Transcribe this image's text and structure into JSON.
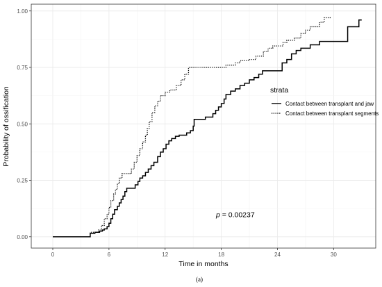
{
  "chart_data": {
    "type": "line",
    "subtype": "kaplan-meier-step",
    "xlabel": "Time in months",
    "ylabel": "Probability of ossification",
    "xlim": [
      -2.3,
      34.5
    ],
    "ylim": [
      -0.05,
      1.03
    ],
    "xticks": [
      0,
      6,
      12,
      18,
      24,
      30
    ],
    "yticks": [
      0.0,
      0.25,
      0.5,
      0.75,
      1.0
    ],
    "ytick_labels": [
      "0.00",
      "0.25",
      "0.50",
      "0.75",
      "1.00"
    ],
    "grid": true,
    "legend": {
      "title": "strata",
      "placement": "right"
    },
    "annotation": {
      "p_symbol": "p",
      "p_value": " = 0.00237",
      "x": 19.5,
      "y": 0.1
    },
    "caption": "(a)",
    "series": [
      {
        "name": "Contact between transplant and jaw",
        "style": "solid",
        "points": [
          [
            0,
            0
          ],
          [
            4,
            0
          ],
          [
            4,
            0.015
          ],
          [
            4.5,
            0.015
          ],
          [
            4.5,
            0.02
          ],
          [
            5,
            0.02
          ],
          [
            5,
            0.025
          ],
          [
            5.3,
            0.025
          ],
          [
            5.3,
            0.03
          ],
          [
            5.5,
            0.03
          ],
          [
            5.5,
            0.035
          ],
          [
            5.8,
            0.035
          ],
          [
            5.8,
            0.045
          ],
          [
            6.0,
            0.045
          ],
          [
            6.0,
            0.06
          ],
          [
            6.2,
            0.06
          ],
          [
            6.2,
            0.08
          ],
          [
            6.4,
            0.08
          ],
          [
            6.4,
            0.1
          ],
          [
            6.6,
            0.1
          ],
          [
            6.6,
            0.12
          ],
          [
            6.9,
            0.12
          ],
          [
            6.9,
            0.135
          ],
          [
            7.1,
            0.135
          ],
          [
            7.1,
            0.15
          ],
          [
            7.3,
            0.15
          ],
          [
            7.3,
            0.165
          ],
          [
            7.5,
            0.165
          ],
          [
            7.5,
            0.18
          ],
          [
            7.7,
            0.18
          ],
          [
            7.7,
            0.2
          ],
          [
            7.9,
            0.2
          ],
          [
            7.9,
            0.215
          ],
          [
            8.8,
            0.215
          ],
          [
            8.8,
            0.23
          ],
          [
            9.1,
            0.23
          ],
          [
            9.1,
            0.245
          ],
          [
            9.3,
            0.245
          ],
          [
            9.3,
            0.26
          ],
          [
            9.6,
            0.26
          ],
          [
            9.6,
            0.27
          ],
          [
            9.9,
            0.27
          ],
          [
            9.9,
            0.285
          ],
          [
            10.2,
            0.285
          ],
          [
            10.2,
            0.3
          ],
          [
            10.5,
            0.3
          ],
          [
            10.5,
            0.315
          ],
          [
            10.8,
            0.315
          ],
          [
            10.8,
            0.33
          ],
          [
            11.2,
            0.33
          ],
          [
            11.2,
            0.355
          ],
          [
            11.5,
            0.355
          ],
          [
            11.5,
            0.375
          ],
          [
            11.8,
            0.375
          ],
          [
            11.8,
            0.39
          ],
          [
            12.1,
            0.39
          ],
          [
            12.1,
            0.41
          ],
          [
            12.4,
            0.41
          ],
          [
            12.4,
            0.425
          ],
          [
            12.7,
            0.425
          ],
          [
            12.7,
            0.435
          ],
          [
            13.1,
            0.435
          ],
          [
            13.1,
            0.445
          ],
          [
            13.5,
            0.445
          ],
          [
            13.5,
            0.45
          ],
          [
            14.3,
            0.45
          ],
          [
            14.3,
            0.46
          ],
          [
            14.7,
            0.46
          ],
          [
            14.7,
            0.47
          ],
          [
            15.0,
            0.47
          ],
          [
            15.0,
            0.49
          ],
          [
            15.1,
            0.49
          ],
          [
            15.1,
            0.52
          ],
          [
            16.3,
            0.52
          ],
          [
            16.3,
            0.53
          ],
          [
            17.1,
            0.53
          ],
          [
            17.1,
            0.545
          ],
          [
            17.4,
            0.545
          ],
          [
            17.4,
            0.56
          ],
          [
            17.7,
            0.56
          ],
          [
            17.7,
            0.575
          ],
          [
            18.0,
            0.575
          ],
          [
            18.0,
            0.59
          ],
          [
            18.3,
            0.59
          ],
          [
            18.3,
            0.61
          ],
          [
            18.5,
            0.61
          ],
          [
            18.5,
            0.63
          ],
          [
            19.0,
            0.63
          ],
          [
            19.0,
            0.645
          ],
          [
            19.5,
            0.645
          ],
          [
            19.5,
            0.655
          ],
          [
            20.0,
            0.655
          ],
          [
            20.0,
            0.67
          ],
          [
            20.5,
            0.67
          ],
          [
            20.5,
            0.68
          ],
          [
            21.0,
            0.68
          ],
          [
            21.0,
            0.695
          ],
          [
            21.5,
            0.695
          ],
          [
            21.5,
            0.705
          ],
          [
            22.0,
            0.705
          ],
          [
            22.0,
            0.72
          ],
          [
            22.4,
            0.72
          ],
          [
            22.4,
            0.735
          ],
          [
            24.5,
            0.735
          ],
          [
            24.5,
            0.77
          ],
          [
            25.0,
            0.77
          ],
          [
            25.0,
            0.785
          ],
          [
            25.5,
            0.785
          ],
          [
            25.5,
            0.81
          ],
          [
            26.0,
            0.81
          ],
          [
            26.0,
            0.825
          ],
          [
            26.5,
            0.825
          ],
          [
            26.5,
            0.835
          ],
          [
            27.5,
            0.835
          ],
          [
            27.5,
            0.85
          ],
          [
            28.5,
            0.85
          ],
          [
            28.5,
            0.865
          ],
          [
            31.5,
            0.865
          ],
          [
            31.5,
            0.93
          ],
          [
            32.7,
            0.93
          ],
          [
            32.7,
            0.96
          ],
          [
            33.0,
            0.96
          ]
        ]
      },
      {
        "name": "Contact between transplant segments",
        "style": "dotted",
        "points": [
          [
            0,
            0
          ],
          [
            4.0,
            0
          ],
          [
            4.0,
            0.02
          ],
          [
            4.9,
            0.02
          ],
          [
            4.9,
            0.03
          ],
          [
            5.2,
            0.03
          ],
          [
            5.2,
            0.05
          ],
          [
            5.5,
            0.05
          ],
          [
            5.5,
            0.08
          ],
          [
            5.8,
            0.08
          ],
          [
            5.8,
            0.1
          ],
          [
            6.0,
            0.1
          ],
          [
            6.0,
            0.13
          ],
          [
            6.2,
            0.13
          ],
          [
            6.2,
            0.16
          ],
          [
            6.5,
            0.16
          ],
          [
            6.5,
            0.19
          ],
          [
            6.7,
            0.19
          ],
          [
            6.7,
            0.21
          ],
          [
            6.9,
            0.21
          ],
          [
            6.9,
            0.235
          ],
          [
            7.1,
            0.235
          ],
          [
            7.1,
            0.26
          ],
          [
            7.4,
            0.26
          ],
          [
            7.4,
            0.28
          ],
          [
            8.4,
            0.28
          ],
          [
            8.4,
            0.3
          ],
          [
            8.7,
            0.3
          ],
          [
            8.7,
            0.33
          ],
          [
            9.0,
            0.33
          ],
          [
            9.0,
            0.36
          ],
          [
            9.3,
            0.36
          ],
          [
            9.3,
            0.39
          ],
          [
            9.6,
            0.39
          ],
          [
            9.6,
            0.42
          ],
          [
            9.9,
            0.42
          ],
          [
            9.9,
            0.45
          ],
          [
            10.1,
            0.45
          ],
          [
            10.1,
            0.48
          ],
          [
            10.3,
            0.48
          ],
          [
            10.3,
            0.51
          ],
          [
            10.6,
            0.51
          ],
          [
            10.6,
            0.55
          ],
          [
            10.9,
            0.55
          ],
          [
            10.9,
            0.58
          ],
          [
            11.2,
            0.58
          ],
          [
            11.2,
            0.6
          ],
          [
            11.5,
            0.6
          ],
          [
            11.5,
            0.625
          ],
          [
            12.0,
            0.625
          ],
          [
            12.0,
            0.64
          ],
          [
            12.5,
            0.64
          ],
          [
            12.5,
            0.65
          ],
          [
            13.2,
            0.65
          ],
          [
            13.2,
            0.67
          ],
          [
            13.7,
            0.67
          ],
          [
            13.7,
            0.695
          ],
          [
            14.1,
            0.695
          ],
          [
            14.1,
            0.72
          ],
          [
            14.5,
            0.72
          ],
          [
            14.5,
            0.75
          ],
          [
            18.5,
            0.75
          ],
          [
            18.5,
            0.76
          ],
          [
            19.5,
            0.76
          ],
          [
            19.5,
            0.77
          ],
          [
            20.0,
            0.77
          ],
          [
            20.0,
            0.78
          ],
          [
            21.0,
            0.78
          ],
          [
            21.0,
            0.785
          ],
          [
            21.7,
            0.785
          ],
          [
            21.7,
            0.8
          ],
          [
            22.5,
            0.8
          ],
          [
            22.5,
            0.82
          ],
          [
            23.0,
            0.82
          ],
          [
            23.0,
            0.835
          ],
          [
            23.5,
            0.835
          ],
          [
            23.5,
            0.845
          ],
          [
            24.6,
            0.845
          ],
          [
            24.6,
            0.86
          ],
          [
            25.0,
            0.86
          ],
          [
            25.0,
            0.87
          ],
          [
            25.8,
            0.87
          ],
          [
            25.8,
            0.88
          ],
          [
            26.5,
            0.88
          ],
          [
            26.5,
            0.9
          ],
          [
            27.0,
            0.9
          ],
          [
            27.0,
            0.915
          ],
          [
            27.5,
            0.915
          ],
          [
            27.5,
            0.93
          ],
          [
            28.5,
            0.93
          ],
          [
            28.5,
            0.95
          ],
          [
            29.0,
            0.95
          ],
          [
            29.0,
            0.97
          ],
          [
            29.7,
            0.97
          ]
        ]
      }
    ]
  }
}
